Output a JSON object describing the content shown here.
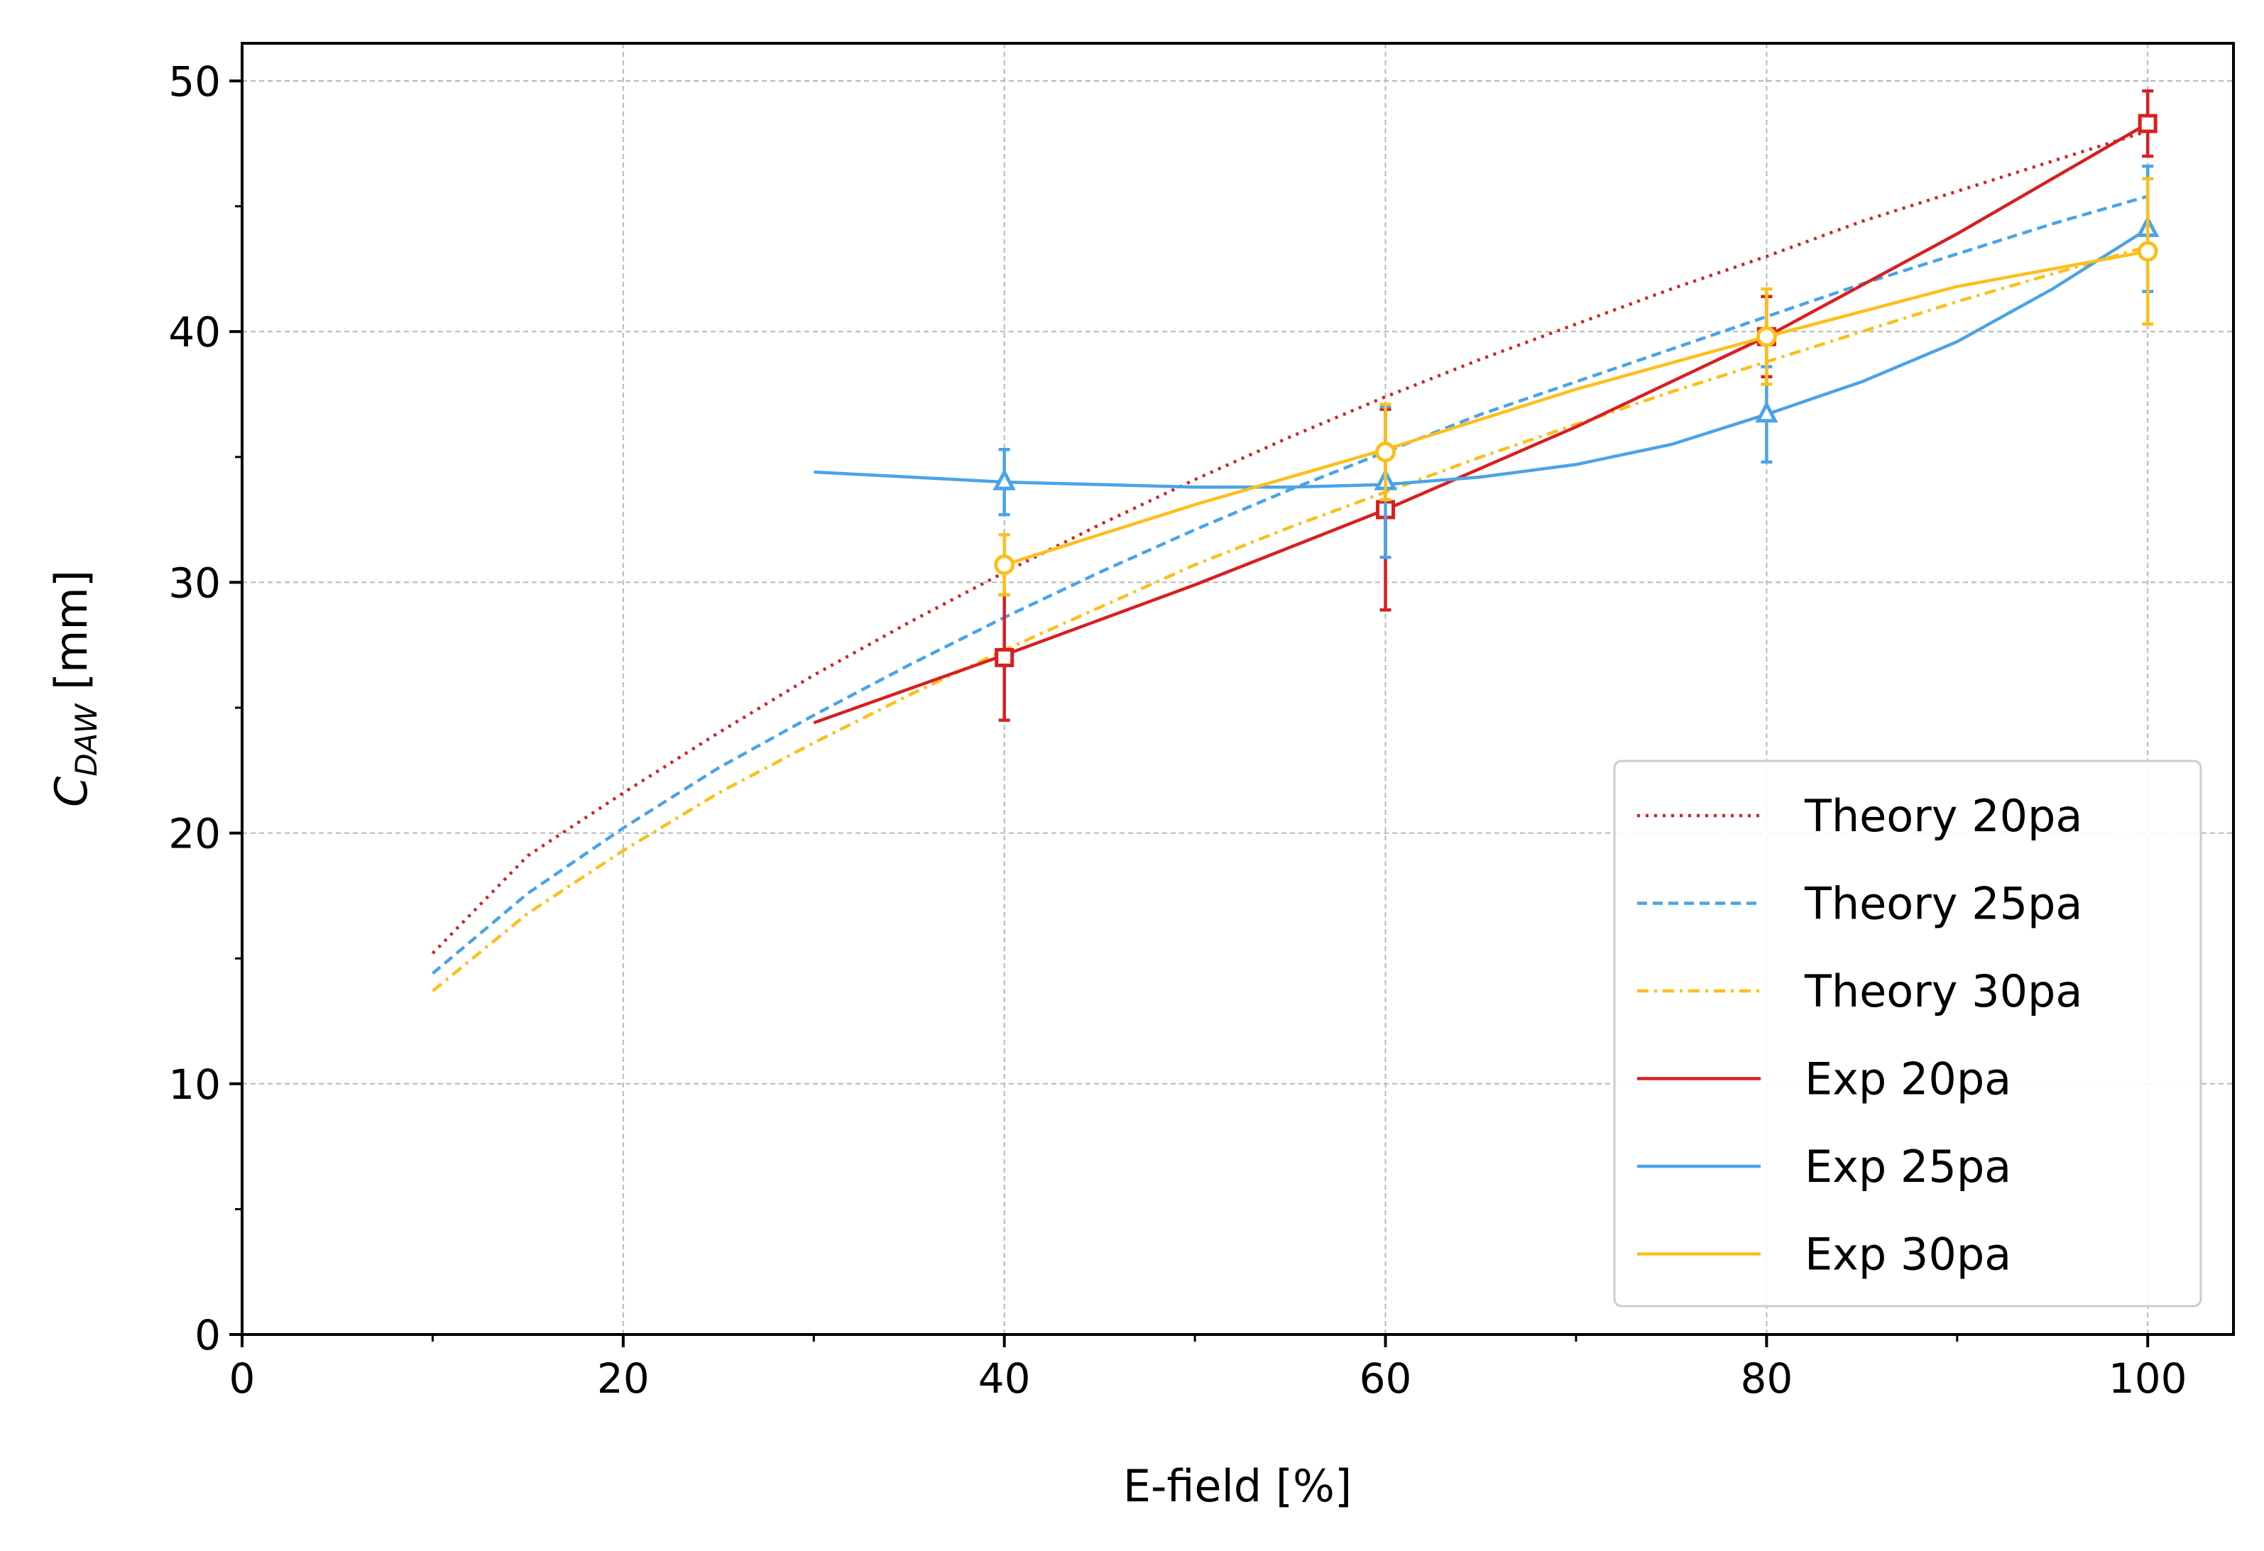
{
  "chart_data": {
    "type": "line",
    "xlabel": "E-field [%]",
    "ylabel": {
      "main": "C",
      "subscript": "DAW",
      "unit": " [mm]"
    },
    "xlim": [
      0,
      104.5
    ],
    "ylim": [
      0,
      51.5
    ],
    "xticks": [
      0,
      20,
      40,
      60,
      80,
      100
    ],
    "yticks": [
      0,
      10,
      20,
      30,
      40,
      50
    ],
    "xminor": [
      10,
      30,
      50,
      70,
      90
    ],
    "yminor": [
      5,
      15,
      25,
      35,
      45
    ],
    "grid": true,
    "legend_position": "lower-right",
    "colors": {
      "red": "#d62020",
      "blue": "#4aa3e8",
      "yellow": "#fcbf1b"
    },
    "series": [
      {
        "name": "Theory 20pa",
        "kind": "theory",
        "color": "#d62020",
        "dash": "dotted",
        "x": [
          10,
          15,
          20,
          25,
          30,
          35,
          40,
          45,
          50,
          55,
          60,
          65,
          70,
          75,
          80,
          85,
          90,
          95,
          100
        ],
        "y": [
          15.2,
          19.1,
          21.6,
          24.0,
          26.3,
          28.4,
          30.4,
          32.3,
          34.1,
          35.8,
          37.4,
          38.9,
          40.3,
          41.7,
          43.0,
          44.4,
          45.6,
          46.8,
          48.0
        ]
      },
      {
        "name": "Theory 25pa",
        "kind": "theory",
        "color": "#4aa3e8",
        "dash": "dashed",
        "x": [
          10,
          15,
          20,
          25,
          30,
          35,
          40,
          45,
          50,
          55,
          60,
          65,
          70,
          75,
          80,
          85,
          90,
          95,
          100
        ],
        "y": [
          14.4,
          17.6,
          20.2,
          22.6,
          24.7,
          26.7,
          28.6,
          30.4,
          32.1,
          33.7,
          35.2,
          36.7,
          38.0,
          39.3,
          40.6,
          41.9,
          43.1,
          44.3,
          45.4
        ]
      },
      {
        "name": "Theory 30pa",
        "kind": "theory",
        "color": "#fcbf1b",
        "dash": "dashdot",
        "x": [
          10,
          15,
          20,
          25,
          30,
          35,
          40,
          45,
          50,
          55,
          60,
          65,
          70,
          75,
          80,
          85,
          90,
          95,
          100
        ],
        "y": [
          13.7,
          16.8,
          19.3,
          21.6,
          23.6,
          25.5,
          27.3,
          29.0,
          30.7,
          32.2,
          33.6,
          35.0,
          36.3,
          37.6,
          38.8,
          40.0,
          41.2,
          42.3,
          43.4
        ]
      },
      {
        "name": "Exp 20pa",
        "kind": "experiment",
        "color": "#d62020",
        "marker": "square",
        "fit_x": [
          30,
          40,
          50,
          60,
          70,
          80,
          90,
          100
        ],
        "fit_y": [
          24.4,
          27.1,
          29.9,
          32.9,
          36.2,
          39.8,
          43.9,
          48.3
        ],
        "points_x": [
          40,
          60,
          80,
          100
        ],
        "points_y": [
          27.0,
          32.9,
          39.8,
          48.3
        ],
        "errors": [
          2.5,
          4.0,
          1.6,
          1.3
        ]
      },
      {
        "name": "Exp 25pa",
        "kind": "experiment",
        "color": "#4aa3e8",
        "marker": "triangle",
        "fit_x": [
          30,
          35,
          40,
          45,
          50,
          55,
          60,
          65,
          70,
          75,
          80,
          85,
          90,
          95,
          100
        ],
        "fit_y": [
          34.4,
          34.2,
          34.0,
          33.9,
          33.8,
          33.8,
          33.9,
          34.2,
          34.7,
          35.5,
          36.7,
          38.0,
          39.6,
          41.7,
          44.1
        ],
        "points_x": [
          40,
          60,
          80,
          100
        ],
        "points_y": [
          34.0,
          34.0,
          36.7,
          44.1
        ],
        "errors": [
          1.3,
          3.0,
          1.9,
          2.5
        ]
      },
      {
        "name": "Exp 30pa",
        "kind": "experiment",
        "color": "#fcbf1b",
        "marker": "circle",
        "fit_x": [
          40,
          50,
          60,
          70,
          80,
          90,
          100
        ],
        "fit_y": [
          30.7,
          33.1,
          35.3,
          37.7,
          39.8,
          41.8,
          43.2
        ],
        "points_x": [
          40,
          60,
          80,
          100
        ],
        "points_y": [
          30.7,
          35.2,
          39.8,
          43.2
        ],
        "errors": [
          1.2,
          1.9,
          1.9,
          2.9
        ]
      }
    ]
  }
}
